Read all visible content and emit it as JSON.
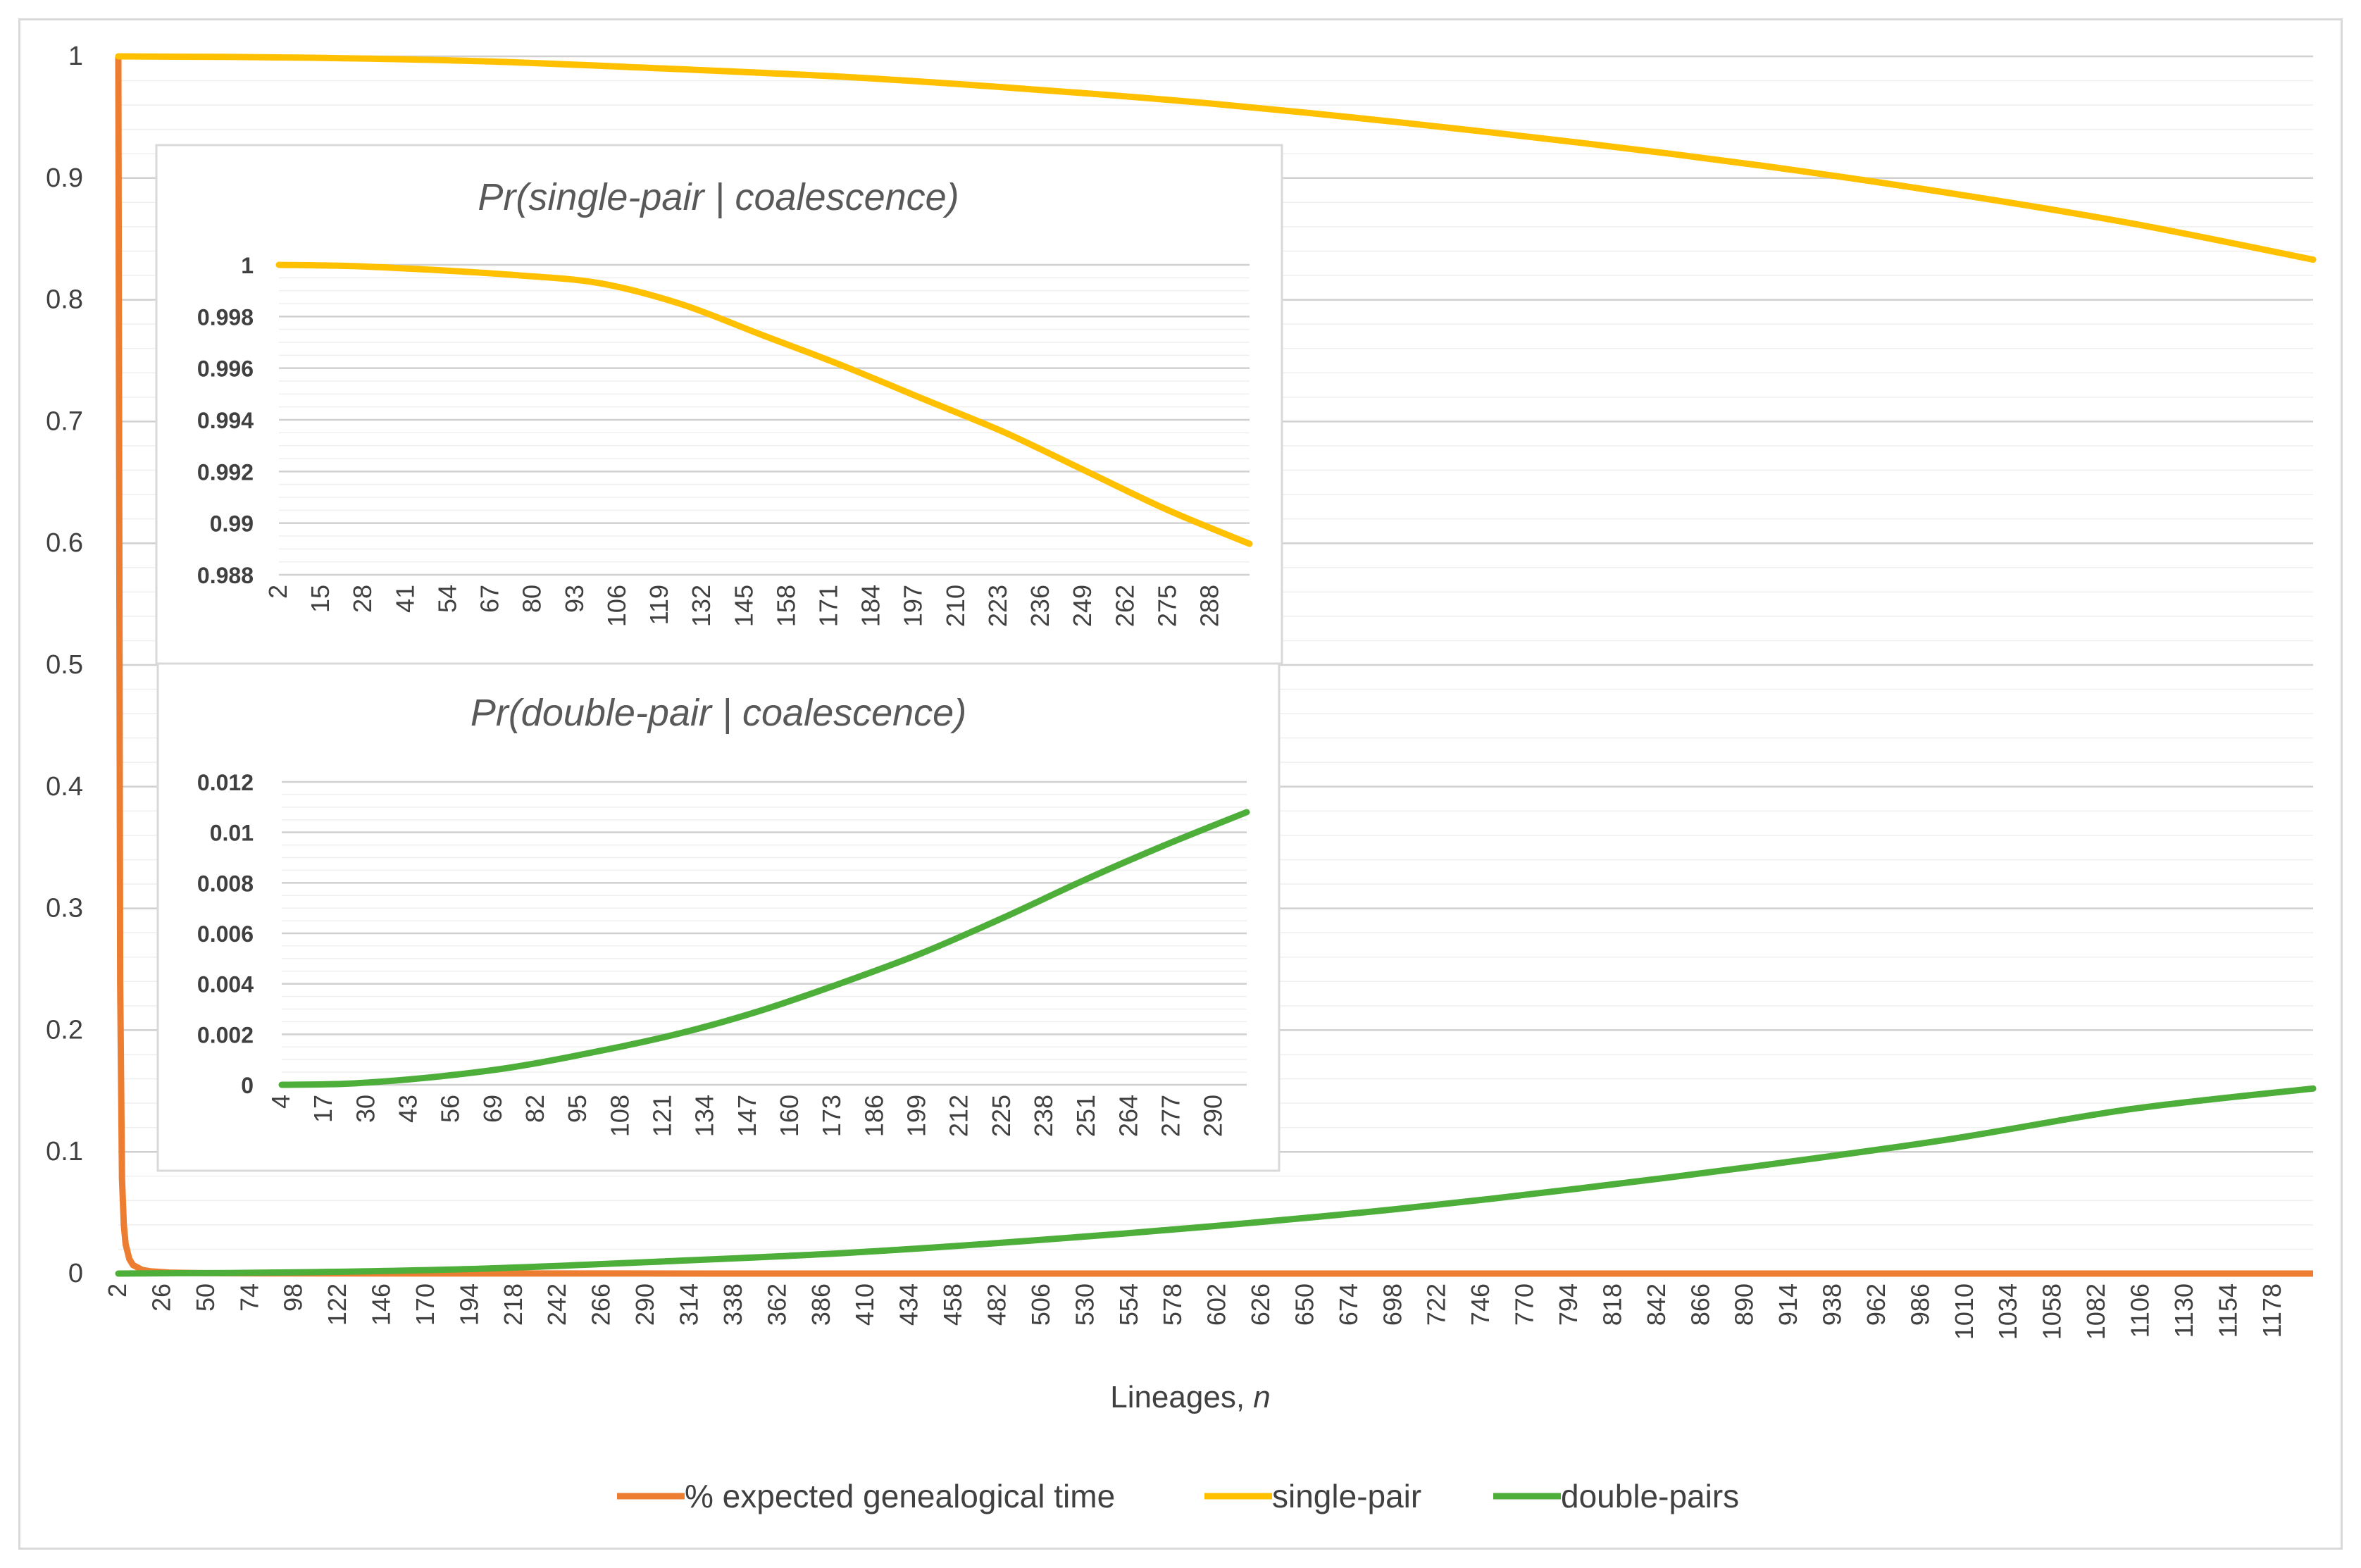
{
  "main": {
    "xlabel_text": "Lineages, ",
    "xlabel_var": "n",
    "yticks": [
      "0",
      "0.1",
      "0.2",
      "0.3",
      "0.4",
      "0.5",
      "0.6",
      "0.7",
      "0.8",
      "0.9",
      "1"
    ],
    "xticks": [
      "2",
      "26",
      "50",
      "74",
      "98",
      "122",
      "146",
      "170",
      "194",
      "218",
      "242",
      "266",
      "290",
      "314",
      "338",
      "362",
      "386",
      "410",
      "434",
      "458",
      "482",
      "506",
      "530",
      "554",
      "578",
      "602",
      "626",
      "650",
      "674",
      "698",
      "722",
      "746",
      "770",
      "794",
      "818",
      "842",
      "866",
      "890",
      "914",
      "938",
      "962",
      "986",
      "1010",
      "1034",
      "1058",
      "1082",
      "1106",
      "1130",
      "1154",
      "1178"
    ]
  },
  "inset_single": {
    "title": "Pr(single-pair | coalescence)",
    "yticks": [
      "0.988",
      "0.99",
      "0.992",
      "0.994",
      "0.996",
      "0.998",
      "1"
    ],
    "xticks": [
      "2",
      "15",
      "28",
      "41",
      "54",
      "67",
      "80",
      "93",
      "106",
      "119",
      "132",
      "145",
      "158",
      "171",
      "184",
      "197",
      "210",
      "223",
      "236",
      "249",
      "262",
      "275",
      "288"
    ]
  },
  "inset_double": {
    "title": "Pr(double-pair | coalescence)",
    "yticks": [
      "0",
      "0.002",
      "0.004",
      "0.006",
      "0.008",
      "0.01",
      "0.012"
    ],
    "xticks": [
      "4",
      "17",
      "30",
      "43",
      "56",
      "69",
      "82",
      "95",
      "108",
      "121",
      "134",
      "147",
      "160",
      "173",
      "186",
      "199",
      "212",
      "225",
      "238",
      "251",
      "264",
      "277",
      "290"
    ]
  },
  "legend": [
    {
      "label": "% expected genealogical time",
      "color": "#ED7D31"
    },
    {
      "label": "single-pair",
      "color": "#FFC000"
    },
    {
      "label": "double-pairs",
      "color": "#4DAF3A"
    }
  ],
  "chart_data": [
    {
      "type": "line",
      "xlabel": "Lineages, n",
      "ylabel": "",
      "x_range": [
        2,
        1200
      ],
      "ylim": [
        0,
        1
      ],
      "grid": true,
      "legend_position": "bottom",
      "series": [
        {
          "name": "% expected genealogical time",
          "color": "#ED7D31",
          "x": [
            2,
            3,
            4,
            5,
            6,
            8,
            10,
            15,
            20,
            30,
            50,
            100,
            200,
            500,
            1200
          ],
          "y": [
            1.0,
            0.24,
            0.078,
            0.04,
            0.024,
            0.012,
            0.007,
            0.003,
            0.0018,
            0.0008,
            0.0003,
            0.0001,
            3e-05,
            5e-06,
            1e-06
          ]
        },
        {
          "name": "single-pair",
          "color": "#FFC000",
          "x": [
            2,
            100,
            200,
            300,
            400,
            500,
            600,
            700,
            800,
            900,
            1000,
            1100,
            1200
          ],
          "y": [
            1.0,
            0.999,
            0.996,
            0.99,
            0.983,
            0.973,
            0.961,
            0.946,
            0.929,
            0.91,
            0.888,
            0.863,
            0.833
          ]
        },
        {
          "name": "double-pairs",
          "color": "#4DAF3A",
          "x": [
            2,
            100,
            200,
            300,
            400,
            500,
            600,
            700,
            800,
            900,
            1000,
            1100,
            1200
          ],
          "y": [
            0,
            0.001,
            0.004,
            0.01,
            0.017,
            0.027,
            0.039,
            0.053,
            0.07,
            0.089,
            0.11,
            0.135,
            0.152
          ]
        }
      ]
    },
    {
      "type": "line",
      "title": "Pr(single-pair | coalescence)",
      "x_range": [
        2,
        300
      ],
      "ylim": [
        0.988,
        1
      ],
      "grid": true,
      "series": [
        {
          "color": "#FFC000",
          "x": [
            2,
            25,
            50,
            75,
            100,
            125,
            150,
            175,
            200,
            225,
            250,
            275,
            300
          ],
          "y": [
            1.0,
            0.99995,
            0.9998,
            0.9996,
            0.9993,
            0.9985,
            0.9973,
            0.9961,
            0.9948,
            0.9935,
            0.992,
            0.9905,
            0.9892
          ]
        }
      ]
    },
    {
      "type": "line",
      "title": "Pr(double-pair | coalescence)",
      "x_range": [
        4,
        300
      ],
      "ylim": [
        0,
        0.012
      ],
      "grid": true,
      "series": [
        {
          "color": "#4DAF3A",
          "x": [
            4,
            25,
            50,
            75,
            100,
            125,
            150,
            175,
            200,
            225,
            250,
            275,
            300
          ],
          "y": [
            0,
            5e-05,
            0.0003,
            0.0007,
            0.0013,
            0.002,
            0.0029,
            0.004,
            0.0052,
            0.0066,
            0.0081,
            0.0095,
            0.0108
          ]
        }
      ]
    }
  ]
}
